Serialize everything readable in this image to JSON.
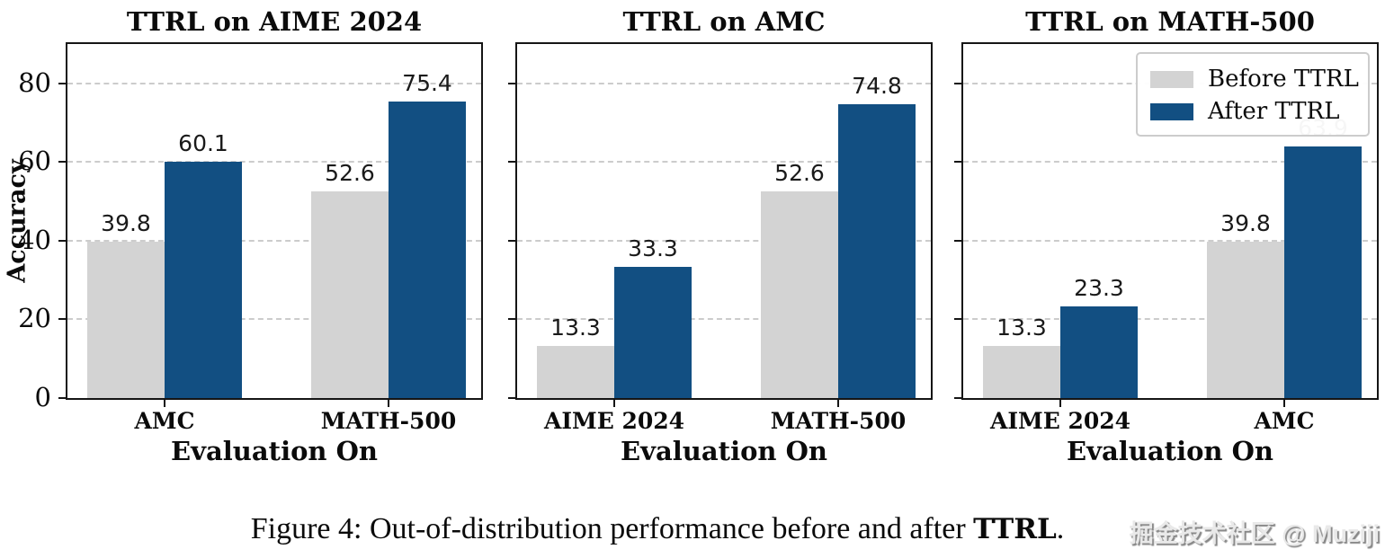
{
  "colors": {
    "before": "#D3D3D3",
    "after": "#124F82",
    "grid": "#CCCCCC",
    "spine": "#151515",
    "series": [
      "#D3D3D3",
      "#124F82"
    ]
  },
  "legend": {
    "position": "top-right-of-third-panel",
    "items": [
      {
        "label": "Before TTRL",
        "color": "#D3D3D3"
      },
      {
        "label": "After TTRL",
        "color": "#124F82"
      }
    ]
  },
  "chart_data": [
    {
      "type": "bar",
      "title": "TTRL on AIME 2024",
      "xlabel": "Evaluation On",
      "ylabel": "Accuracy",
      "categories": [
        "AMC",
        "MATH-500"
      ],
      "series": [
        {
          "name": "Before TTRL",
          "values": [
            39.8,
            52.6
          ]
        },
        {
          "name": "After TTRL",
          "values": [
            60.1,
            75.4
          ]
        }
      ],
      "yticks": [
        0,
        20,
        40,
        60,
        80
      ],
      "ylim": [
        0,
        90
      ],
      "grid": true,
      "show_ytick_labels": true,
      "show_ylabel": true,
      "legend": false
    },
    {
      "type": "bar",
      "title": "TTRL on AMC",
      "xlabel": "Evaluation On",
      "ylabel": "Accuracy",
      "categories": [
        "AIME 2024",
        "MATH-500"
      ],
      "series": [
        {
          "name": "Before TTRL",
          "values": [
            13.3,
            52.6
          ]
        },
        {
          "name": "After TTRL",
          "values": [
            33.3,
            74.8
          ]
        }
      ],
      "yticks": [
        0,
        20,
        40,
        60,
        80
      ],
      "ylim": [
        0,
        90
      ],
      "grid": true,
      "show_ytick_labels": false,
      "show_ylabel": false,
      "legend": false
    },
    {
      "type": "bar",
      "title": "TTRL on MATH-500",
      "xlabel": "Evaluation On",
      "ylabel": "Accuracy",
      "categories": [
        "AIME 2024",
        "AMC"
      ],
      "series": [
        {
          "name": "Before TTRL",
          "values": [
            13.3,
            39.8
          ]
        },
        {
          "name": "After TTRL",
          "values": [
            23.3,
            63.9
          ]
        }
      ],
      "yticks": [
        0,
        20,
        40,
        60,
        80
      ],
      "ylim": [
        0,
        90
      ],
      "grid": true,
      "show_ytick_labels": false,
      "show_ylabel": false,
      "legend": true
    }
  ],
  "caption": {
    "prefix": "Figure 4: Out-of-distribution performance before and after ",
    "bold": "TTRL",
    "suffix": "."
  },
  "watermark": "掘金技术社区 @ Muziji"
}
